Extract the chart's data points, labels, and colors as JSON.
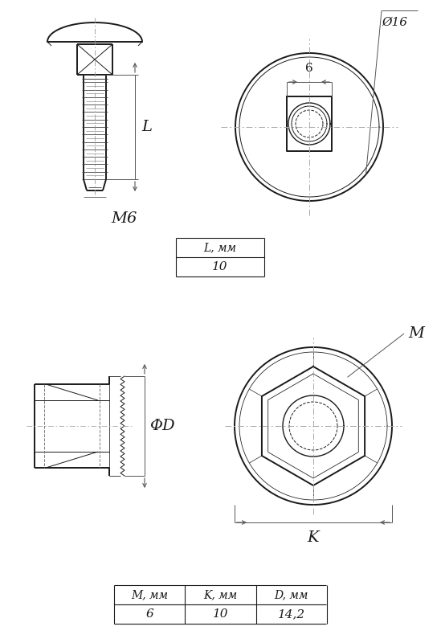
{
  "bg_color": "#ffffff",
  "line_color": "#1a1a1a",
  "thin_lw": 0.7,
  "thick_lw": 1.4,
  "medium_lw": 1.0,
  "table1_header": "L, мм",
  "table1_value": "10",
  "table2_headers": [
    "M, мм",
    "K, мм",
    "D, мм"
  ],
  "table2_values": [
    "6",
    "10",
    "14,2"
  ]
}
